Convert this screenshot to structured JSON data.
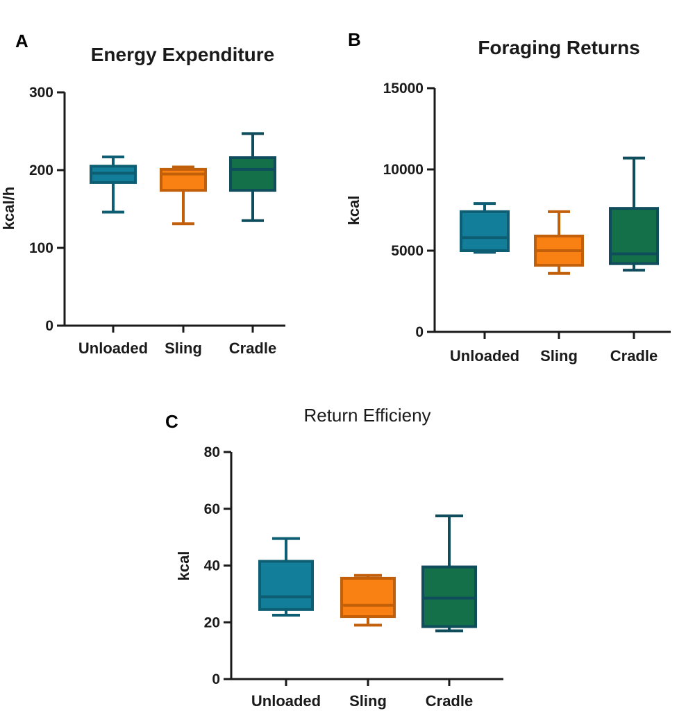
{
  "colors": {
    "unloaded_fill": "#127E9A",
    "unloaded_stroke": "#0E5E73",
    "sling_fill": "#F98012",
    "sling_stroke": "#C25F0A",
    "cradle_fill": "#137049",
    "cradle_stroke": "#0F4D5C",
    "axis": "#1a1a1a"
  },
  "chart_data": [
    {
      "panel": "A",
      "type": "box",
      "title": "Energy Expenditure",
      "ylabel": "kcal/h",
      "ylim": [
        0,
        300
      ],
      "yticks": [
        0,
        100,
        200,
        300
      ],
      "ytick_labels": [
        "0",
        "100",
        "200",
        "300"
      ],
      "categories": [
        "Unloaded",
        "Sling",
        "Cradle"
      ],
      "boxes": [
        {
          "name": "Unloaded",
          "min": 146,
          "q1": 184,
          "median": 196,
          "q3": 205,
          "max": 217
        },
        {
          "name": "Sling",
          "min": 131,
          "q1": 174,
          "median": 195,
          "q3": 201,
          "max": 204
        },
        {
          "name": "Cradle",
          "min": 135,
          "q1": 174,
          "median": 201,
          "q3": 216,
          "max": 247
        }
      ]
    },
    {
      "panel": "B",
      "type": "box",
      "title": "Foraging Returns",
      "ylabel": "kcal",
      "ylim": [
        0,
        15000
      ],
      "yticks": [
        0,
        5000,
        10000,
        15000
      ],
      "ytick_labels": [
        "0",
        "5000",
        "10000",
        "15000"
      ],
      "categories": [
        "Unloaded",
        "Sling",
        "Cradle"
      ],
      "boxes": [
        {
          "name": "Unloaded",
          "min": 4900,
          "q1": 5000,
          "median": 5800,
          "q3": 7400,
          "max": 7900
        },
        {
          "name": "Sling",
          "min": 3600,
          "q1": 4100,
          "median": 5000,
          "q3": 5900,
          "max": 7400
        },
        {
          "name": "Cradle",
          "min": 3800,
          "q1": 4200,
          "median": 4800,
          "q3": 7600,
          "max": 10700
        }
      ]
    },
    {
      "panel": "C",
      "type": "box",
      "title": "Return Efficieny",
      "ylabel": "kcal",
      "ylim": [
        0,
        80
      ],
      "yticks": [
        0,
        20,
        40,
        60,
        80
      ],
      "ytick_labels": [
        "0",
        "20",
        "40",
        "60",
        "80"
      ],
      "categories": [
        "Unloaded",
        "Sling",
        "Cradle"
      ],
      "boxes": [
        {
          "name": "Unloaded",
          "min": 22.5,
          "q1": 24.5,
          "median": 29,
          "q3": 41.5,
          "max": 49.5
        },
        {
          "name": "Sling",
          "min": 19,
          "q1": 22,
          "median": 26,
          "q3": 35.5,
          "max": 36.5
        },
        {
          "name": "Cradle",
          "min": 17,
          "q1": 18.5,
          "median": 28.5,
          "q3": 39.5,
          "max": 57.5
        }
      ]
    }
  ]
}
